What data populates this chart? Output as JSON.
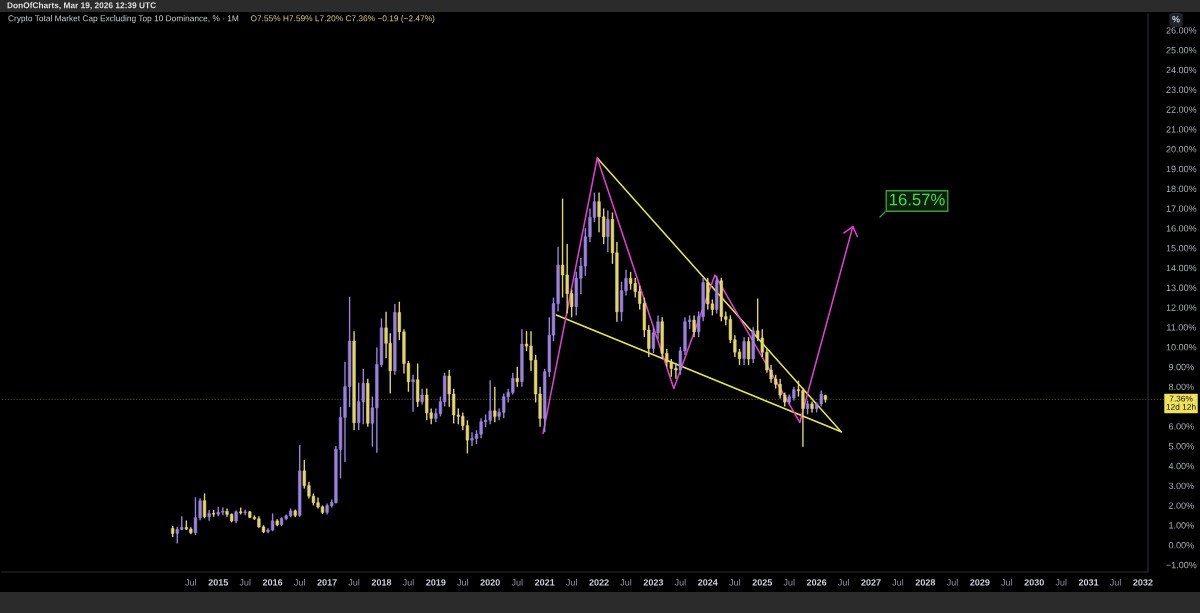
{
  "chart_data": {
    "type": "candlestick",
    "title": "Crypto Total Market Cap Excluding Top 10 Dominance, % · 1M",
    "subtitle": "O7.55% H7.59% L7.20% C7.36% −0.19 (−2.47%)",
    "ylabel": "%",
    "annotations": [
      "DonOfCharts, Mar 19, 2026 12:39 UTC",
      "16.57%"
    ],
    "x": [
      "2014-03",
      "2014-04",
      "2014-05",
      "2014-06",
      "2014-07",
      "2014-08",
      "2014-09",
      "2014-10",
      "2014-11",
      "2014-12",
      "2015-01",
      "2015-02",
      "2015-03",
      "2015-04",
      "2015-05",
      "2015-06",
      "2015-07",
      "2015-08",
      "2015-09",
      "2015-10",
      "2015-11",
      "2015-12",
      "2016-01",
      "2016-02",
      "2016-03",
      "2016-04",
      "2016-05",
      "2016-06",
      "2016-07",
      "2016-08",
      "2016-09",
      "2016-10",
      "2016-11",
      "2016-12",
      "2017-01",
      "2017-02",
      "2017-03",
      "2017-04",
      "2017-05",
      "2017-06",
      "2017-07",
      "2017-08",
      "2017-09",
      "2017-10",
      "2017-11",
      "2017-12",
      "2018-01",
      "2018-02",
      "2018-03",
      "2018-04",
      "2018-05",
      "2018-06",
      "2018-07",
      "2018-08",
      "2018-09",
      "2018-10",
      "2018-11",
      "2018-12",
      "2019-01",
      "2019-02",
      "2019-03",
      "2019-04",
      "2019-05",
      "2019-06",
      "2019-07",
      "2019-08",
      "2019-09",
      "2019-10",
      "2019-11",
      "2019-12",
      "2020-01",
      "2020-02",
      "2020-03",
      "2020-04",
      "2020-05",
      "2020-06",
      "2020-07",
      "2020-08",
      "2020-09",
      "2020-10",
      "2020-11",
      "2020-12",
      "2021-01",
      "2021-02",
      "2021-03",
      "2021-04",
      "2021-05",
      "2021-06",
      "2021-07",
      "2021-08",
      "2021-09",
      "2021-10",
      "2021-11",
      "2021-12",
      "2022-01",
      "2022-02",
      "2022-03",
      "2022-04",
      "2022-05",
      "2022-06",
      "2022-07",
      "2022-08",
      "2022-09",
      "2022-10",
      "2022-11",
      "2022-12",
      "2023-01",
      "2023-02",
      "2023-03",
      "2023-04",
      "2023-05",
      "2023-06",
      "2023-07",
      "2023-08",
      "2023-09",
      "2023-10",
      "2023-11",
      "2023-12",
      "2024-01",
      "2024-02",
      "2024-03",
      "2024-04",
      "2024-05",
      "2024-06",
      "2024-07",
      "2024-08",
      "2024-09",
      "2024-10",
      "2024-11",
      "2024-12",
      "2025-01",
      "2025-02",
      "2025-03",
      "2025-04",
      "2025-05",
      "2025-06",
      "2025-07",
      "2025-08",
      "2025-09",
      "2025-10",
      "2025-11",
      "2025-12",
      "2026-01",
      "2026-02",
      "2026-03"
    ],
    "ohlc": [
      [
        0.84,
        0.96,
        0.4,
        0.59
      ],
      [
        0.59,
        0.93,
        0.08,
        0.79
      ],
      [
        0.79,
        1.46,
        0.76,
        0.89
      ],
      [
        0.89,
        1.24,
        0.76,
        0.81
      ],
      [
        0.81,
        0.9,
        0.55,
        0.62
      ],
      [
        0.62,
        2.41,
        0.5,
        1.38
      ],
      [
        1.38,
        2.36,
        1.25,
        2.24
      ],
      [
        2.24,
        2.61,
        1.35,
        1.43
      ],
      [
        1.43,
        1.77,
        1.23,
        1.6
      ],
      [
        1.6,
        1.77,
        1.43,
        1.56
      ],
      [
        1.56,
        1.94,
        1.45,
        1.66
      ],
      [
        1.66,
        1.9,
        1.5,
        1.7
      ],
      [
        1.7,
        1.85,
        1.43,
        1.55
      ],
      [
        1.55,
        1.6,
        1.15,
        1.22
      ],
      [
        1.22,
        1.75,
        1.1,
        1.68
      ],
      [
        1.68,
        1.9,
        1.55,
        1.64
      ],
      [
        1.64,
        1.8,
        1.5,
        1.68
      ],
      [
        1.68,
        1.72,
        1.35,
        1.4
      ],
      [
        1.4,
        1.5,
        1.27,
        1.33
      ],
      [
        1.33,
        1.46,
        0.88,
        0.92
      ],
      [
        0.92,
        1.0,
        0.6,
        0.67
      ],
      [
        0.67,
        0.85,
        0.6,
        0.76
      ],
      [
        0.76,
        1.6,
        0.7,
        1.22
      ],
      [
        1.22,
        1.3,
        0.95,
        1.03
      ],
      [
        1.03,
        1.4,
        0.95,
        1.34
      ],
      [
        1.34,
        1.55,
        1.25,
        1.48
      ],
      [
        1.48,
        1.85,
        1.4,
        1.73
      ],
      [
        1.73,
        1.8,
        1.4,
        1.5
      ],
      [
        1.5,
        5.05,
        1.43,
        3.75
      ],
      [
        3.75,
        4.29,
        2.86,
        3.0
      ],
      [
        3.0,
        3.2,
        2.35,
        2.47
      ],
      [
        2.47,
        2.6,
        2.0,
        2.14
      ],
      [
        2.14,
        2.4,
        1.85,
        1.93
      ],
      [
        1.93,
        2.0,
        1.57,
        1.65
      ],
      [
        1.65,
        2.1,
        1.55,
        1.99
      ],
      [
        1.99,
        2.3,
        1.9,
        2.15
      ],
      [
        2.15,
        5.0,
        2.1,
        4.83
      ],
      [
        4.83,
        6.98,
        3.37,
        6.45
      ],
      [
        6.45,
        9.26,
        4.2,
        8.0
      ],
      [
        8.0,
        12.54,
        6.98,
        10.3
      ],
      [
        10.3,
        10.8,
        5.8,
        6.18
      ],
      [
        6.18,
        8.2,
        5.8,
        7.24
      ],
      [
        7.24,
        8.9,
        6.1,
        8.17
      ],
      [
        8.17,
        8.4,
        5.97,
        6.15
      ],
      [
        6.15,
        7.5,
        4.97,
        6.93
      ],
      [
        6.93,
        9.98,
        4.66,
        9.12
      ],
      [
        9.12,
        11.45,
        9.0,
        10.97
      ],
      [
        10.97,
        11.78,
        9.43,
        10.19
      ],
      [
        10.19,
        10.7,
        7.66,
        8.8
      ],
      [
        8.8,
        12.17,
        8.6,
        11.75
      ],
      [
        11.75,
        12.29,
        10.35,
        10.77
      ],
      [
        10.77,
        10.9,
        8.67,
        9.17
      ],
      [
        9.17,
        9.3,
        7.74,
        8.25
      ],
      [
        8.25,
        8.6,
        6.73,
        8.35
      ],
      [
        8.35,
        9.17,
        6.98,
        7.24
      ],
      [
        7.24,
        7.9,
        7.1,
        7.58
      ],
      [
        7.58,
        7.91,
        6.31,
        6.68
      ],
      [
        6.68,
        6.9,
        6.1,
        6.4
      ],
      [
        6.4,
        6.9,
        6.2,
        6.64
      ],
      [
        6.64,
        7.5,
        6.5,
        7.24
      ],
      [
        7.24,
        8.7,
        7.0,
        8.54
      ],
      [
        8.54,
        8.84,
        6.98,
        7.63
      ],
      [
        7.63,
        7.9,
        6.14,
        6.57
      ],
      [
        6.57,
        6.9,
        6.1,
        6.5
      ],
      [
        6.5,
        6.7,
        5.8,
        6.03
      ],
      [
        6.03,
        6.3,
        4.63,
        5.3
      ],
      [
        5.3,
        5.7,
        5.0,
        5.38
      ],
      [
        5.38,
        5.8,
        5.1,
        5.6
      ],
      [
        5.6,
        6.4,
        5.4,
        6.23
      ],
      [
        6.23,
        6.6,
        5.95,
        6.3
      ],
      [
        6.3,
        8.33,
        6.1,
        6.78
      ],
      [
        6.78,
        8.0,
        6.2,
        6.5
      ],
      [
        6.5,
        6.9,
        6.3,
        6.7
      ],
      [
        6.7,
        7.66,
        6.4,
        7.49
      ],
      [
        7.49,
        7.9,
        7.2,
        7.71
      ],
      [
        7.71,
        8.7,
        7.6,
        8.42
      ],
      [
        8.42,
        9.0,
        8.0,
        8.25
      ],
      [
        8.25,
        10.9,
        8.0,
        10.15
      ],
      [
        10.15,
        10.8,
        9.8,
        10.05
      ],
      [
        10.05,
        10.8,
        8.8,
        9.34
      ],
      [
        9.34,
        9.6,
        7.2,
        7.63
      ],
      [
        7.63,
        8.0,
        5.98,
        6.4
      ],
      [
        6.4,
        8.9,
        5.7,
        8.75
      ],
      [
        8.75,
        11.5,
        8.5,
        10.6
      ],
      [
        10.6,
        12.5,
        10.3,
        12.2
      ],
      [
        12.2,
        15.07,
        11.8,
        14.14
      ],
      [
        14.14,
        17.5,
        12.5,
        13.64
      ],
      [
        13.64,
        15.2,
        11.7,
        12.7
      ],
      [
        12.7,
        12.9,
        11.5,
        12.04
      ],
      [
        12.04,
        13.8,
        11.6,
        13.47
      ],
      [
        13.47,
        14.5,
        12.68,
        14.09
      ],
      [
        14.09,
        16.0,
        13.6,
        15.57
      ],
      [
        15.57,
        17.0,
        15.3,
        16.55
      ],
      [
        16.55,
        17.8,
        16.3,
        17.34
      ],
      [
        17.34,
        17.8,
        15.8,
        16.58
      ],
      [
        16.58,
        17.0,
        15.2,
        15.57
      ],
      [
        15.57,
        16.9,
        14.8,
        16.45
      ],
      [
        16.45,
        16.8,
        14.2,
        14.76
      ],
      [
        14.76,
        15.3,
        11.28,
        11.78
      ],
      [
        11.78,
        13.3,
        11.3,
        12.85
      ],
      [
        12.85,
        13.9,
        12.6,
        13.47
      ],
      [
        13.47,
        13.8,
        12.9,
        13.21
      ],
      [
        13.21,
        13.5,
        12.5,
        12.8
      ],
      [
        12.8,
        13.1,
        11.9,
        12.2
      ],
      [
        12.2,
        12.5,
        10.5,
        10.86
      ],
      [
        10.86,
        11.1,
        9.5,
        9.93
      ],
      [
        9.93,
        11.0,
        9.7,
        10.72
      ],
      [
        10.72,
        11.6,
        10.4,
        11.28
      ],
      [
        11.28,
        11.5,
        9.4,
        9.68
      ],
      [
        9.68,
        9.9,
        9.0,
        9.25
      ],
      [
        9.25,
        9.4,
        8.5,
        8.92
      ],
      [
        8.92,
        9.2,
        8.4,
        8.84
      ],
      [
        8.84,
        10.0,
        8.6,
        9.81
      ],
      [
        9.81,
        11.5,
        9.6,
        11.28
      ],
      [
        11.28,
        11.6,
        10.9,
        11.36
      ],
      [
        11.36,
        11.6,
        10.5,
        10.77
      ],
      [
        10.77,
        11.8,
        10.5,
        11.53
      ],
      [
        11.53,
        13.5,
        11.3,
        13.26
      ],
      [
        13.26,
        13.5,
        11.9,
        12.18
      ],
      [
        12.18,
        12.4,
        11.6,
        11.9
      ],
      [
        11.9,
        13.6,
        11.7,
        13.35
      ],
      [
        13.35,
        13.5,
        11.3,
        11.54
      ],
      [
        11.54,
        11.8,
        11.1,
        11.4
      ],
      [
        11.4,
        11.6,
        10.2,
        10.37
      ],
      [
        10.37,
        10.6,
        9.5,
        9.74
      ],
      [
        9.74,
        9.9,
        9.1,
        9.42
      ],
      [
        9.42,
        10.5,
        9.1,
        10.28
      ],
      [
        10.28,
        10.5,
        9.1,
        9.4
      ],
      [
        9.4,
        11.0,
        9.2,
        10.82
      ],
      [
        10.82,
        12.45,
        10.3,
        10.46
      ],
      [
        10.46,
        10.9,
        9.5,
        9.74
      ],
      [
        9.74,
        9.9,
        8.7,
        8.84
      ],
      [
        8.84,
        9.1,
        8.2,
        8.39
      ],
      [
        8.39,
        8.6,
        7.9,
        8.12
      ],
      [
        8.12,
        8.4,
        7.4,
        7.58
      ],
      [
        7.58,
        7.7,
        7.0,
        7.22
      ],
      [
        7.22,
        7.6,
        7.1,
        7.49
      ],
      [
        7.43,
        8.0,
        7.3,
        7.85
      ],
      [
        7.85,
        8.3,
        7.5,
        7.8
      ],
      [
        7.8,
        7.95,
        4.96,
        6.89
      ],
      [
        6.89,
        7.3,
        6.6,
        7.13
      ],
      [
        7.13,
        7.25,
        6.7,
        6.89
      ],
      [
        6.89,
        7.2,
        6.7,
        7.13
      ],
      [
        7.13,
        7.8,
        7.0,
        7.61
      ],
      [
        7.55,
        7.59,
        7.2,
        7.36
      ]
    ],
    "colors": [
      "#e3d56a",
      "#9b82e0",
      "#9b82e0",
      "#e3d56a",
      "#e3d56a",
      "#9b82e0",
      "#9b82e0",
      "#e3d56a",
      "#9b82e0",
      "#e3d56a",
      "#9b82e0",
      "#9b82e0",
      "#e3d56a",
      "#e3d56a",
      "#9b82e0",
      "#e3d56a",
      "#9b82e0",
      "#e3d56a",
      "#e3d56a",
      "#e3d56a",
      "#e3d56a",
      "#9b82e0",
      "#9b82e0",
      "#e3d56a",
      "#9b82e0",
      "#9b82e0",
      "#9b82e0",
      "#e3d56a",
      "#9b82e0",
      "#e3d56a",
      "#e3d56a",
      "#e3d56a",
      "#e3d56a",
      "#e3d56a",
      "#9b82e0",
      "#9b82e0",
      "#9b82e0",
      "#9b82e0",
      "#9b82e0",
      "#9b82e0",
      "#e3d56a",
      "#9b82e0",
      "#9b82e0",
      "#e3d56a",
      "#9b82e0",
      "#9b82e0",
      "#9b82e0",
      "#e3d56a",
      "#e3d56a",
      "#9b82e0",
      "#e3d56a",
      "#e3d56a",
      "#e3d56a",
      "#9b82e0",
      "#e3d56a",
      "#9b82e0",
      "#e3d56a",
      "#e3d56a",
      "#9b82e0",
      "#9b82e0",
      "#9b82e0",
      "#e3d56a",
      "#e3d56a",
      "#e3d56a",
      "#e3d56a",
      "#e3d56a",
      "#9b82e0",
      "#9b82e0",
      "#9b82e0",
      "#9b82e0",
      "#9b82e0",
      "#e3d56a",
      "#9b82e0",
      "#9b82e0",
      "#9b82e0",
      "#9b82e0",
      "#e3d56a",
      "#9b82e0",
      "#e3d56a",
      "#e3d56a",
      "#e3d56a",
      "#e3d56a",
      "#9b82e0",
      "#9b82e0",
      "#9b82e0",
      "#9b82e0",
      "#e3d56a",
      "#e3d56a",
      "#e3d56a",
      "#9b82e0",
      "#9b82e0",
      "#9b82e0",
      "#9b82e0",
      "#9b82e0",
      "#e3d56a",
      "#e3d56a",
      "#9b82e0",
      "#e3d56a",
      "#e3d56a",
      "#9b82e0",
      "#9b82e0",
      "#e3d56a",
      "#e3d56a",
      "#e3d56a",
      "#e3d56a",
      "#e3d56a",
      "#9b82e0",
      "#9b82e0",
      "#e3d56a",
      "#e3d56a",
      "#e3d56a",
      "#e3d56a",
      "#9b82e0",
      "#9b82e0",
      "#9b82e0",
      "#e3d56a",
      "#9b82e0",
      "#9b82e0",
      "#e3d56a",
      "#e3d56a",
      "#9b82e0",
      "#e3d56a",
      "#e3d56a",
      "#e3d56a",
      "#e3d56a",
      "#e3d56a",
      "#9b82e0",
      "#e3d56a",
      "#9b82e0",
      "#e3d56a",
      "#e3d56a",
      "#e3d56a",
      "#e3d56a",
      "#e3d56a",
      "#e3d56a",
      "#e3d56a",
      "#9b82e0",
      "#9b82e0",
      "#e3d56a",
      "#e3d56a",
      "#9b82e0",
      "#e3d56a",
      "#9b82e0",
      "#9b82e0",
      "#e3d56a"
    ],
    "series": [
      {
        "type": "line",
        "color": "#e8e84a",
        "x": [
          "2021-12-20",
          "2026-06-15"
        ],
        "values": [
          19.55,
          5.72
        ]
      },
      {
        "type": "line",
        "color": "#e8e84a",
        "x": [
          "2021-03-20",
          "2026-06-15"
        ],
        "values": [
          11.62,
          5.72
        ]
      },
      {
        "type": "line",
        "color": "#e23fd4",
        "x": [
          "2020-12-21",
          "2021-12-20",
          "2023-05-18",
          "2024-02-18",
          "2025-09-10"
        ],
        "values": [
          5.64,
          19.55,
          7.91,
          13.64,
          6.2
        ]
      }
    ],
    "ref_lines": [
      {
        "axis": "y",
        "value": 7.36,
        "label": "7.36%\n12d 12h",
        "color": "#f0e15a",
        "line_style": "dotted"
      }
    ],
    "xlim": [
      "2011-01-10",
      "2032-02-04"
    ],
    "xticks": [
      {
        "value": "2014-07",
        "label": "Jul"
      },
      {
        "value": "2015-01",
        "label": "2015"
      },
      {
        "value": "2015-07",
        "label": "Jul"
      },
      {
        "value": "2016-01",
        "label": "2016"
      },
      {
        "value": "2016-07",
        "label": "Jul"
      },
      {
        "value": "2017-01",
        "label": "2017"
      },
      {
        "value": "2017-07",
        "label": "Jul"
      },
      {
        "value": "2018-01",
        "label": "2018"
      },
      {
        "value": "2018-07",
        "label": "Jul"
      },
      {
        "value": "2019-01",
        "label": "2019"
      },
      {
        "value": "2019-07",
        "label": "Jul"
      },
      {
        "value": "2020-01",
        "label": "2020"
      },
      {
        "value": "2020-07",
        "label": "Jul"
      },
      {
        "value": "2021-01",
        "label": "2021"
      },
      {
        "value": "2021-07",
        "label": "Jul"
      },
      {
        "value": "2022-01",
        "label": "2022"
      },
      {
        "value": "2022-07",
        "label": "Jul"
      },
      {
        "value": "2023-01",
        "label": "2023"
      },
      {
        "value": "2023-07",
        "label": "Jul"
      },
      {
        "value": "2024-01",
        "label": "2024"
      },
      {
        "value": "2024-07",
        "label": "Jul"
      },
      {
        "value": "2025-01",
        "label": "2025"
      },
      {
        "value": "2025-07",
        "label": "Jul"
      },
      {
        "value": "2026-01",
        "label": "2026"
      },
      {
        "value": "2026-07",
        "label": "Jul"
      },
      {
        "value": "2027-01",
        "label": "2027"
      },
      {
        "value": "2027-07",
        "label": "Jul"
      },
      {
        "value": "2028-01",
        "label": "2028"
      },
      {
        "value": "2028-07",
        "label": "Jul"
      },
      {
        "value": "2029-01",
        "label": "2029"
      },
      {
        "value": "2029-07",
        "label": "Jul"
      },
      {
        "value": "2030-01",
        "label": "2030"
      },
      {
        "value": "2030-07",
        "label": "Jul"
      },
      {
        "value": "2031-01",
        "label": "2031"
      },
      {
        "value": "2031-07",
        "label": "Jul"
      },
      {
        "value": "2032-01",
        "label": "2032"
      }
    ],
    "ylim": [
      -1.36,
      26.82
    ],
    "yticks": [
      {
        "value": -1,
        "label": "−1.00%"
      },
      {
        "value": 0,
        "label": "0.00%"
      },
      {
        "value": 1,
        "label": "1.00%"
      },
      {
        "value": 2,
        "label": "2.00%"
      },
      {
        "value": 3,
        "label": "3.00%"
      },
      {
        "value": 4,
        "label": "4.00%"
      },
      {
        "value": 5,
        "label": "5.00%"
      },
      {
        "value": 6,
        "label": "6.00%"
      },
      {
        "value": 8,
        "label": "8.00%"
      },
      {
        "value": 9,
        "label": "9.00%"
      },
      {
        "value": 10,
        "label": "10.00%"
      },
      {
        "value": 11,
        "label": "11.00%"
      },
      {
        "value": 12,
        "label": "12.00%"
      },
      {
        "value": 13,
        "label": "13.00%"
      },
      {
        "value": 14,
        "label": "14.00%"
      },
      {
        "value": 15,
        "label": "15.00%"
      },
      {
        "value": 16,
        "label": "16.00%"
      },
      {
        "value": 17,
        "label": "17.00%"
      },
      {
        "value": 18,
        "label": "18.00%"
      },
      {
        "value": 19,
        "label": "19.00%"
      },
      {
        "value": 20,
        "label": "20.00%"
      },
      {
        "value": 21,
        "label": "21.00%"
      },
      {
        "value": 22,
        "label": "22.00%"
      },
      {
        "value": 23,
        "label": "23.00%"
      },
      {
        "value": 24,
        "label": "24.00%"
      },
      {
        "value": 25,
        "label": "25.00%"
      },
      {
        "value": 26,
        "label": "26.00%"
      }
    ]
  }
}
